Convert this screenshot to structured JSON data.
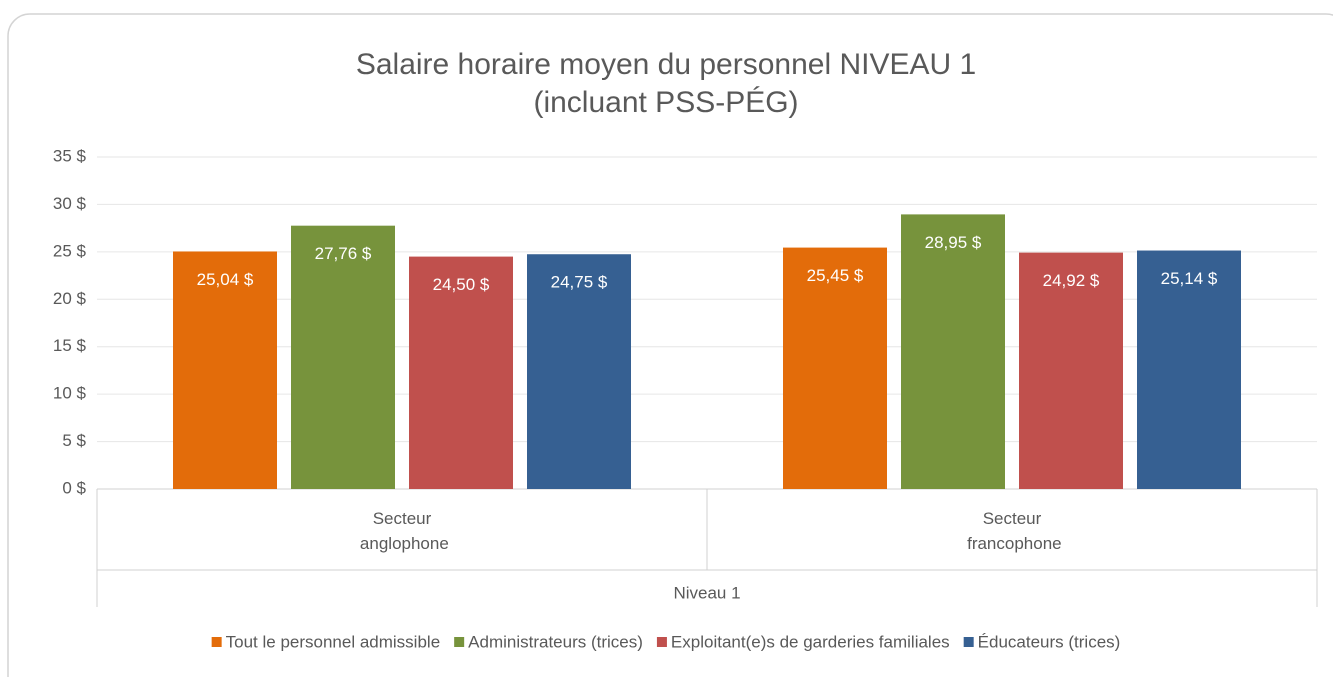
{
  "chart_data": {
    "type": "bar",
    "title": "Salaire horaire moyen du personnel NIVEAU 1",
    "subtitle": "(incluant PSS-PÉG)",
    "group_label": "Niveau 1",
    "categories": [
      "Secteur anglophone",
      "Secteur francophone"
    ],
    "series": [
      {
        "name": "Tout le personnel admissible",
        "color": "#e36c0a",
        "values": [
          25.04,
          25.45
        ],
        "value_labels": [
          "25,04 $",
          "25,45 $"
        ]
      },
      {
        "name": "Administrateurs (trices)",
        "color": "#77933c",
        "values": [
          27.76,
          28.95
        ],
        "value_labels": [
          "27,76 $",
          "28,95 $"
        ]
      },
      {
        "name": "Exploitant(e)s de garderies familiales",
        "color": "#c0504d",
        "values": [
          24.5,
          24.92
        ],
        "value_labels": [
          "24,50 $",
          "24,92 $"
        ]
      },
      {
        "name": "Éducateurs (trices)",
        "color": "#366092",
        "values": [
          24.75,
          25.14
        ],
        "value_labels": [
          "24,75 $",
          "25,14 $"
        ]
      }
    ],
    "ylim": [
      0,
      35
    ],
    "yticks": [
      {
        "value": 0,
        "label": "0 $"
      },
      {
        "value": 5,
        "label": "5 $"
      },
      {
        "value": 10,
        "label": "10 $"
      },
      {
        "value": 15,
        "label": "15 $"
      },
      {
        "value": 20,
        "label": "20 $"
      },
      {
        "value": 25,
        "label": "25 $"
      },
      {
        "value": 30,
        "label": "30 $"
      },
      {
        "value": 35,
        "label": "35 $"
      }
    ],
    "grid": true,
    "legend": "bottom"
  }
}
